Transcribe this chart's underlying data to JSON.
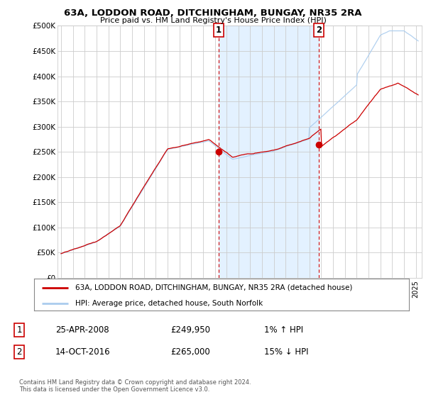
{
  "title1": "63A, LODDON ROAD, DITCHINGHAM, BUNGAY, NR35 2RA",
  "title2": "Price paid vs. HM Land Registry's House Price Index (HPI)",
  "ylabel_ticks": [
    "£0",
    "£50K",
    "£100K",
    "£150K",
    "£200K",
    "£250K",
    "£300K",
    "£350K",
    "£400K",
    "£450K",
    "£500K"
  ],
  "ytick_vals": [
    0,
    50000,
    100000,
    150000,
    200000,
    250000,
    300000,
    350000,
    400000,
    450000,
    500000
  ],
  "ylim": [
    0,
    500000
  ],
  "xlim_start": 1994.7,
  "xlim_end": 2025.5,
  "sale1_x": 2008.32,
  "sale1_y": 249950,
  "sale1_label": "1",
  "sale1_date": "25-APR-2008",
  "sale1_price": "£249,950",
  "sale1_hpi": "1% ↑ HPI",
  "sale2_x": 2016.79,
  "sale2_y": 265000,
  "sale2_label": "2",
  "sale2_date": "14-OCT-2016",
  "sale2_price": "£265,000",
  "sale2_hpi": "15% ↓ HPI",
  "legend_line1": "63A, LODDON ROAD, DITCHINGHAM, BUNGAY, NR35 2RA (detached house)",
  "legend_line2": "HPI: Average price, detached house, South Norfolk",
  "footer": "Contains HM Land Registry data © Crown copyright and database right 2024.\nThis data is licensed under the Open Government Licence v3.0.",
  "line_color_red": "#cc0000",
  "line_color_blue": "#6699cc",
  "line_color_blue_light": "#aaccee",
  "dot_color": "#cc0000",
  "vline_color": "#cc0000",
  "shade_color": "#ddeeff",
  "background_color": "#ffffff",
  "grid_color": "#cccccc"
}
